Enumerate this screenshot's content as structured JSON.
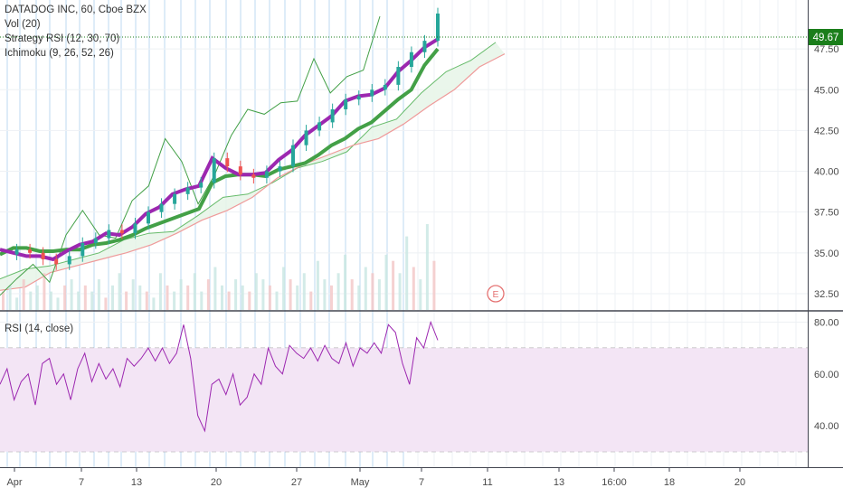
{
  "header": {
    "symbol_line": "DATADOG INC, 60, Cboe BZX",
    "indicators": [
      "Vol (20)",
      "Strategy RSI (12, 30, 70)",
      "Ichimoku (9, 26, 52, 26)"
    ]
  },
  "price_pane": {
    "y_ticks": [
      "47.50",
      "45.00",
      "42.50",
      "40.00",
      "37.50",
      "35.00",
      "32.50"
    ],
    "last_price": "49.67",
    "earnings_marker": "E"
  },
  "rsi_pane": {
    "label": "RSI (14, close)",
    "y_ticks": [
      "80.00",
      "60.00",
      "40.00"
    ]
  },
  "x_axis": {
    "ticks": [
      "Apr",
      "7",
      "13",
      "20",
      "27",
      "May",
      "7",
      "11",
      "13",
      "16:00",
      "18",
      "20"
    ]
  },
  "colors": {
    "price_up": "#26a69a",
    "price_down": "#ef5350",
    "strategy_line": "#9c27b0",
    "ichimoku_base": "#43a047",
    "cloud_fill": "#e8f5e9",
    "rsi_line": "#9c27b0",
    "rsi_band": "#f3e5f5",
    "last_price_bg": "#1b7e1b"
  },
  "chart_data": {
    "type": "line",
    "price": {
      "ylim": [
        31.5,
        50.5
      ],
      "ticks": [
        47.5,
        45.0,
        42.5,
        40.0,
        37.5,
        35.0,
        32.5
      ],
      "close": [
        34.9,
        35.2,
        35.0,
        34.6,
        34.3,
        34.8,
        35.6,
        35.9,
        36.4,
        36.2,
        36.8,
        37.5,
        38.0,
        38.6,
        39.0,
        39.3,
        40.8,
        40.3,
        39.8,
        39.6,
        40.0,
        40.3,
        41.6,
        42.5,
        43.0,
        43.8,
        44.4,
        44.6,
        45.0,
        45.3,
        46.4,
        47.3,
        48.0,
        49.67
      ],
      "strategy": [
        35.2,
        35.0,
        34.8,
        34.8,
        34.6,
        35.1,
        35.5,
        35.7,
        36.2,
        36.1,
        36.6,
        37.4,
        37.8,
        38.6,
        38.9,
        39.1,
        40.8,
        40.2,
        39.8,
        39.8,
        39.9,
        40.7,
        41.3,
        42.2,
        42.8,
        43.4,
        44.3,
        44.6,
        44.7,
        45.1,
        46.1,
        46.8,
        47.6,
        48.1
      ],
      "kijun": [
        34.9,
        35.3,
        35.3,
        35.1,
        35.1,
        35.2,
        35.2,
        35.5,
        35.6,
        35.8,
        36.1,
        36.5,
        36.8,
        37.1,
        37.4,
        37.7,
        39.3,
        39.7,
        39.8,
        39.8,
        39.7,
        40.1,
        40.3,
        40.5,
        41.0,
        41.6,
        42.0,
        42.6,
        43.0,
        43.7,
        44.4,
        45.0,
        46.5,
        47.5
      ],
      "lagging": [
        32.4,
        33.4,
        34.3,
        33.2,
        36.1,
        37.6,
        36.1,
        35.9,
        38.2,
        39.1,
        42.0,
        40.6,
        38.0,
        39.8,
        42.2,
        43.8,
        43.5,
        44.2,
        44.3,
        46.9,
        44.8,
        45.8,
        46.2,
        49.5
      ],
      "span_a": [
        33.4,
        34.0,
        34.2,
        34.6,
        35.0,
        35.8,
        36.2,
        36.3,
        37.3,
        38.4,
        38.6,
        39.3,
        40.2,
        40.6,
        41.2,
        42.7,
        43.2,
        44.8,
        46.1,
        46.8,
        47.9
      ],
      "span_b": [
        32.7,
        32.9,
        33.8,
        34.2,
        34.6,
        35.0,
        35.5,
        36.2,
        37.0,
        37.6,
        38.4,
        39.6,
        40.4,
        41.0,
        41.6,
        42.0,
        42.9,
        44.0,
        45.0,
        46.4,
        47.2
      ]
    },
    "volume": [
      3,
      4,
      2,
      5,
      3,
      4,
      6,
      3,
      2,
      4,
      5,
      3,
      4,
      3,
      5,
      2,
      4,
      6,
      3,
      5,
      4,
      3,
      2,
      6,
      4,
      3,
      5,
      4,
      6,
      3,
      5,
      7,
      4,
      3,
      5,
      4,
      3,
      6,
      5,
      4,
      3,
      7,
      5,
      4,
      6,
      3,
      8,
      5,
      4,
      6,
      9,
      5,
      4,
      7,
      6,
      5,
      9,
      8,
      6,
      12,
      7,
      5,
      14,
      8
    ],
    "rsi": {
      "ylim": [
        24,
        84
      ],
      "ticks": [
        80,
        60,
        40
      ],
      "band": [
        30,
        70
      ],
      "values": [
        56,
        62,
        50,
        57,
        60,
        48,
        64,
        66,
        56,
        60,
        50,
        62,
        68,
        57,
        64,
        58,
        62,
        55,
        66,
        63,
        66,
        70,
        65,
        70,
        64,
        68,
        79,
        66,
        44,
        38,
        56,
        58,
        52,
        60,
        48,
        51,
        60,
        56,
        70,
        63,
        60,
        71,
        68,
        66,
        70,
        65,
        71,
        66,
        64,
        72,
        63,
        70,
        68,
        72,
        68,
        79,
        76,
        64,
        56,
        74,
        70,
        80,
        73
      ]
    }
  }
}
